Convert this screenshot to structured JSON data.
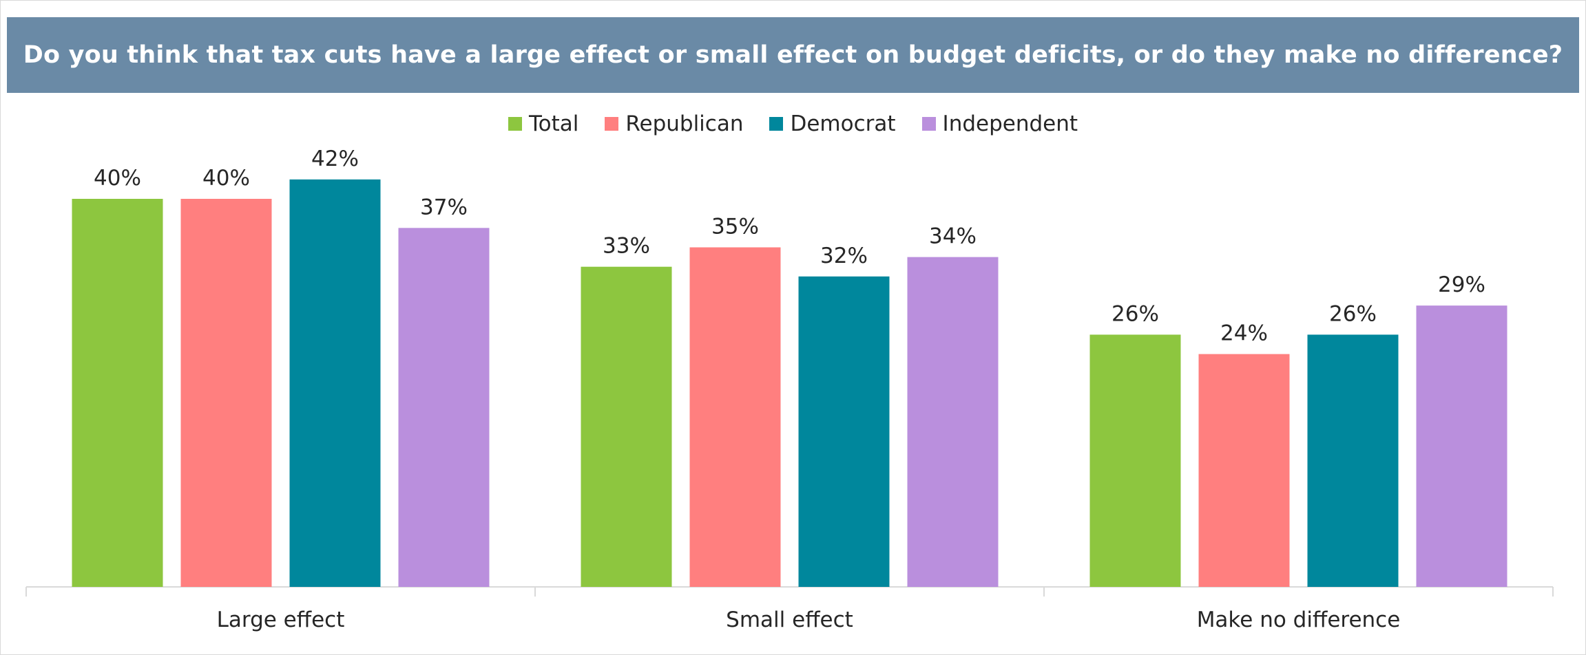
{
  "chart_data": {
    "type": "bar",
    "title": "Do you think that tax cuts have a large effect or small effect on budget deficits, or do they make no difference?",
    "categories": [
      "Large effect",
      "Small effect",
      "Make no difference"
    ],
    "series": [
      {
        "name": "Total",
        "color": "#8dc63f",
        "values": [
          40,
          33,
          26
        ],
        "labels": [
          "40%",
          "33%",
          "26%"
        ]
      },
      {
        "name": "Republican",
        "color": "#ff7f7f",
        "values": [
          40,
          35,
          24
        ],
        "labels": [
          "40%",
          "35%",
          "24%"
        ]
      },
      {
        "name": "Democrat",
        "color": "#00879c",
        "values": [
          42,
          32,
          26
        ],
        "labels": [
          "42%",
          "32%",
          "26%"
        ]
      },
      {
        "name": "Independent",
        "color": "#ba8fdd",
        "values": [
          37,
          34,
          29
        ],
        "labels": [
          "37%",
          "34%",
          "29%"
        ]
      }
    ],
    "ylim": [
      0,
      50
    ],
    "legend": "top-center",
    "grid": false,
    "title_band_color": "#6a8aa6"
  }
}
